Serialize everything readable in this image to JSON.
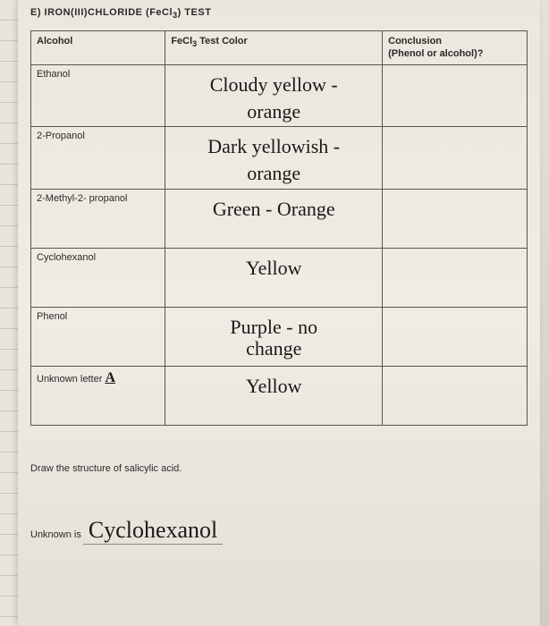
{
  "title_prefix": "E) IRON(III)CHLORIDE (FeCl",
  "title_sub": "3",
  "title_suffix": ") TEST",
  "headers": {
    "col1": "Alcohol",
    "col2_prefix": "FeCl",
    "col2_sub": "3",
    "col2_suffix": " Test Color",
    "col3_line1": "Conclusion",
    "col3_line2": "(Phenol or alcohol)?"
  },
  "rows": [
    {
      "label": "Ethanol",
      "color_l1": "Cloudy yellow -",
      "color_l2": "orange",
      "conclusion": ""
    },
    {
      "label": "2-Propanol",
      "color_l1": "Dark yellowish -",
      "color_l2": "orange",
      "conclusion": ""
    },
    {
      "label": "2-Methyl-2- propanol",
      "color_l1": "Green - Orange",
      "color_l2": "",
      "conclusion": ""
    },
    {
      "label": "Cyclohexanol",
      "color_l1": "Yellow",
      "color_l2": "",
      "conclusion": ""
    },
    {
      "label": "Phenol",
      "color_l1": "Purple - no",
      "color_l2": "change",
      "conclusion": ""
    },
    {
      "label": "Unknown letter",
      "letter": "A",
      "color_l1": "Yellow",
      "color_l2": "",
      "conclusion": ""
    }
  ],
  "prompt": "Draw the structure of salicylic acid.",
  "unknown_label": "Unknown is",
  "unknown_value": "Cyclohexanol",
  "colors": {
    "ink": "#1a1a1a",
    "print": "#2a2a2a",
    "border": "#555555",
    "paper_light": "#f0ece4",
    "paper_dark": "#e4e0d8"
  }
}
